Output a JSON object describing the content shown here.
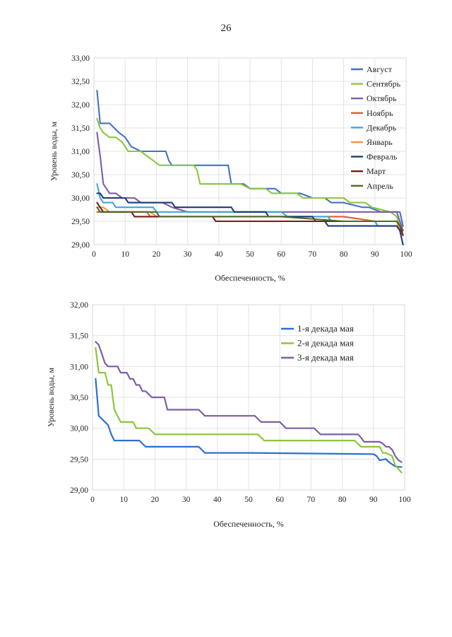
{
  "page_number": "26",
  "chart_data": [
    {
      "type": "line",
      "title": "",
      "xlabel": "Обеспеченность, %",
      "ylabel": "Уровень воды, м",
      "xlim": [
        0,
        100
      ],
      "ylim": [
        29.0,
        33.0
      ],
      "x_ticks": [
        "0",
        "10",
        "20",
        "30",
        "40",
        "50",
        "60",
        "70",
        "80",
        "90",
        "100"
      ],
      "y_ticks": [
        "29,00",
        "29,50",
        "30,00",
        "30,50",
        "31,00",
        "31,50",
        "32,00",
        "32,50",
        "33,00"
      ],
      "series": [
        {
          "name": "Август",
          "color": "#4472C4",
          "x": [
            1,
            2,
            3,
            5,
            8,
            10,
            12,
            15,
            17,
            19,
            21,
            22,
            23,
            24,
            25,
            27,
            42,
            43,
            44,
            45,
            48,
            50,
            52,
            58,
            60,
            64,
            66,
            70,
            72,
            74,
            76,
            78,
            80,
            86,
            88,
            92,
            96,
            98,
            99
          ],
          "y": [
            32.3,
            31.6,
            31.6,
            31.6,
            31.4,
            31.3,
            31.1,
            31.0,
            31.0,
            31.0,
            31.0,
            31.0,
            31.0,
            30.8,
            30.7,
            30.7,
            30.7,
            30.7,
            30.3,
            30.3,
            30.3,
            30.2,
            30.2,
            30.2,
            30.1,
            30.1,
            30.1,
            30.0,
            30.0,
            30.0,
            29.9,
            29.9,
            29.9,
            29.8,
            29.8,
            29.7,
            29.7,
            29.7,
            29.4
          ]
        },
        {
          "name": "Сентябрь",
          "color": "#8DC63F",
          "x": [
            1,
            2,
            3,
            5,
            7,
            9,
            11,
            13,
            15,
            17,
            19,
            21,
            23,
            32,
            33,
            34,
            36,
            45,
            47,
            50,
            52,
            55,
            57,
            65,
            67,
            80,
            82,
            87,
            89,
            95,
            97,
            99
          ],
          "y": [
            31.7,
            31.5,
            31.4,
            31.3,
            31.3,
            31.2,
            31.0,
            31.0,
            31.0,
            30.9,
            30.8,
            30.7,
            30.7,
            30.7,
            30.6,
            30.3,
            30.3,
            30.3,
            30.3,
            30.2,
            30.2,
            30.2,
            30.1,
            30.1,
            30.0,
            30.0,
            29.9,
            29.9,
            29.8,
            29.7,
            29.6,
            29.2
          ]
        },
        {
          "name": "Октябрь",
          "color": "#7B5EA7",
          "x": [
            1,
            2,
            3,
            4,
            5,
            7,
            9,
            11,
            13,
            15,
            20,
            22,
            25,
            30,
            40,
            50,
            60,
            70,
            80,
            90,
            97,
            98,
            99
          ],
          "y": [
            31.4,
            30.9,
            30.3,
            30.2,
            30.1,
            30.1,
            30.0,
            30.0,
            30.0,
            29.9,
            29.9,
            29.9,
            29.8,
            29.7,
            29.7,
            29.7,
            29.7,
            29.7,
            29.7,
            29.7,
            29.7,
            29.5,
            29.3
          ]
        },
        {
          "name": "Ноябрь",
          "color": "#E05A3A",
          "x": [
            1,
            3,
            5,
            17,
            18,
            30,
            50,
            60,
            70,
            80,
            90,
            97,
            98,
            99
          ],
          "y": [
            29.7,
            29.7,
            29.7,
            29.7,
            29.6,
            29.6,
            29.6,
            29.6,
            29.6,
            29.6,
            29.5,
            29.5,
            29.4,
            29.2
          ]
        },
        {
          "name": "Декабрь",
          "color": "#3FA9D8",
          "x": [
            1,
            2,
            3,
            5,
            6,
            7,
            19,
            20,
            22,
            40,
            60,
            62,
            75,
            76,
            90,
            91,
            97,
            98,
            99
          ],
          "y": [
            30.3,
            30.0,
            29.9,
            29.9,
            29.9,
            29.8,
            29.8,
            29.7,
            29.7,
            29.7,
            29.7,
            29.6,
            29.6,
            29.5,
            29.5,
            29.4,
            29.4,
            29.3,
            29.2
          ]
        },
        {
          "name": "Январь",
          "color": "#F79646",
          "x": [
            1,
            3,
            5,
            18,
            20,
            40,
            60,
            70,
            71,
            90,
            97,
            98,
            99
          ],
          "y": [
            29.8,
            29.8,
            29.7,
            29.7,
            29.6,
            29.6,
            29.6,
            29.6,
            29.5,
            29.5,
            29.5,
            29.3,
            29.2
          ]
        },
        {
          "name": "Февраль",
          "color": "#1F3A7A",
          "x": [
            1,
            2,
            3,
            10,
            11,
            25,
            26,
            44,
            45,
            55,
            56,
            70,
            71,
            74,
            75,
            97,
            98,
            99
          ],
          "y": [
            30.1,
            30.1,
            30.0,
            30.0,
            29.9,
            29.9,
            29.8,
            29.8,
            29.7,
            29.7,
            29.6,
            29.6,
            29.5,
            29.5,
            29.4,
            29.4,
            29.3,
            29.0
          ]
        },
        {
          "name": "Март",
          "color": "#7A1A1A",
          "x": [
            1,
            2,
            3,
            4,
            12,
            13,
            38,
            39,
            60,
            70,
            90,
            97,
            98,
            99
          ],
          "y": [
            29.9,
            29.8,
            29.7,
            29.7,
            29.7,
            29.6,
            29.6,
            29.5,
            29.5,
            29.5,
            29.5,
            29.5,
            29.4,
            29.2
          ]
        },
        {
          "name": "Апрель",
          "color": "#4E6B2A",
          "x": [
            1,
            2,
            4,
            20,
            21,
            40,
            60,
            80,
            90,
            97,
            98,
            99
          ],
          "y": [
            29.8,
            29.7,
            29.7,
            29.7,
            29.6,
            29.6,
            29.6,
            29.5,
            29.5,
            29.5,
            29.4,
            29.3
          ]
        }
      ]
    },
    {
      "type": "line",
      "title": "",
      "xlabel": "Обеспеченность, %",
      "ylabel": "Уровень воды, м",
      "xlim": [
        0,
        100
      ],
      "ylim": [
        29.0,
        32.0
      ],
      "x_ticks": [
        "0",
        "10",
        "20",
        "30",
        "40",
        "50",
        "60",
        "70",
        "80",
        "90",
        "100"
      ],
      "y_ticks": [
        "29,00",
        "29,50",
        "30,00",
        "30,50",
        "31,00",
        "31,50",
        "32,00"
      ],
      "series": [
        {
          "name": "1-я декада мая",
          "color": "#2F6FD0",
          "x": [
            1,
            2,
            3,
            5,
            6,
            7,
            10,
            15,
            16,
            17,
            20,
            34,
            35,
            36,
            50,
            89,
            90,
            91,
            92,
            94,
            95,
            97,
            99
          ],
          "y": [
            30.8,
            30.2,
            30.15,
            30.05,
            29.9,
            29.8,
            29.8,
            29.8,
            29.75,
            29.7,
            29.7,
            29.7,
            29.65,
            29.6,
            29.6,
            29.58,
            29.58,
            29.55,
            29.48,
            29.5,
            29.45,
            29.38,
            29.37
          ]
        },
        {
          "name": "2-я декада мая",
          "color": "#8DC63F",
          "x": [
            1,
            2,
            4,
            5,
            6,
            7,
            8,
            9,
            10,
            13,
            14,
            15,
            18,
            19,
            20,
            21,
            53,
            54,
            55,
            84,
            85,
            86,
            92,
            93,
            94,
            96,
            97,
            99
          ],
          "y": [
            31.3,
            30.9,
            30.9,
            30.7,
            30.7,
            30.3,
            30.2,
            30.1,
            30.1,
            30.1,
            30.0,
            30.0,
            30.0,
            29.95,
            29.9,
            29.9,
            29.9,
            29.85,
            29.8,
            29.8,
            29.75,
            29.7,
            29.7,
            29.6,
            29.6,
            29.55,
            29.4,
            29.28
          ]
        },
        {
          "name": "3-я декада мая",
          "color": "#7B5EA7",
          "x": [
            1,
            2,
            3,
            4,
            5,
            6,
            8,
            9,
            10,
            11,
            12,
            13,
            14,
            15,
            16,
            17,
            18,
            19,
            20,
            23,
            24,
            25,
            34,
            35,
            36,
            52,
            53,
            54,
            60,
            61,
            62,
            71,
            72,
            73,
            85,
            86,
            87,
            92,
            93,
            94,
            95,
            96,
            97,
            98,
            99
          ],
          "y": [
            31.4,
            31.35,
            31.2,
            31.05,
            31.0,
            31.0,
            31.0,
            30.9,
            30.9,
            30.9,
            30.8,
            30.8,
            30.7,
            30.7,
            30.6,
            30.6,
            30.55,
            30.5,
            30.5,
            30.5,
            30.3,
            30.3,
            30.3,
            30.25,
            30.2,
            30.2,
            30.15,
            30.1,
            30.1,
            30.05,
            30.0,
            30.0,
            29.95,
            29.9,
            29.9,
            29.85,
            29.78,
            29.78,
            29.75,
            29.7,
            29.7,
            29.65,
            29.55,
            29.48,
            29.45
          ]
        }
      ]
    }
  ]
}
